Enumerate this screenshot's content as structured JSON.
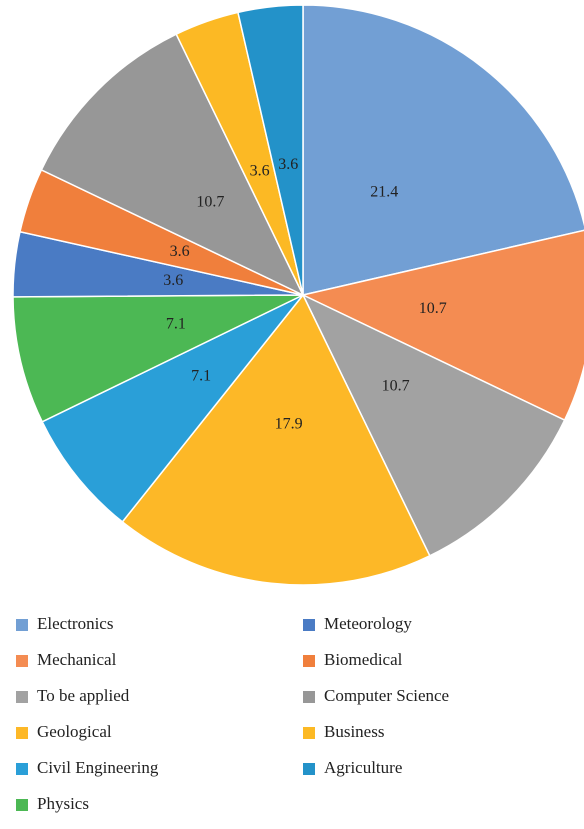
{
  "chart_data": {
    "type": "pie",
    "categories": [
      "Electronics",
      "Mechanical",
      "To be applied",
      "Geological",
      "Civil Engineering",
      "Physics",
      "Meteorology",
      "Biomedical",
      "Computer Science",
      "Business",
      "Agriculture"
    ],
    "values": [
      21.4,
      10.7,
      10.7,
      17.9,
      7.1,
      7.1,
      3.6,
      3.6,
      10.7,
      3.6,
      3.6
    ],
    "colors": [
      "#729fd4",
      "#f48c52",
      "#a2a2a2",
      "#fdb827",
      "#2a9fd8",
      "#4cb854",
      "#4a7bc4",
      "#f07f3c",
      "#979797",
      "#fcb924",
      "#2392c9"
    ],
    "legend": "bottom"
  }
}
